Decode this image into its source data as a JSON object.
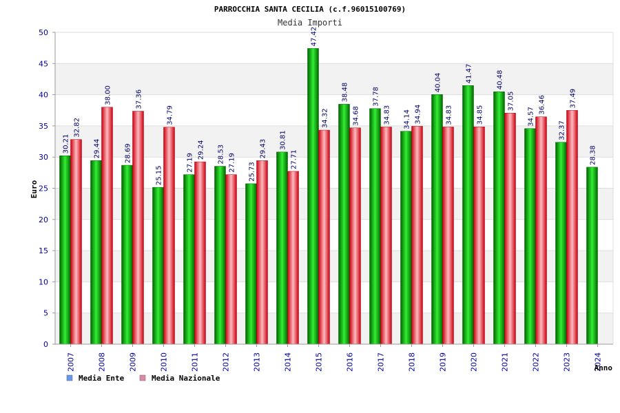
{
  "chart_data": {
    "type": "bar",
    "title": "PARROCCHIA SANTA CECILIA (c.f.96015100769)",
    "subtitle": "Media Importi",
    "ylabel": "Euro",
    "xlabel": "Anno",
    "ylim": [
      0,
      50
    ],
    "yticks": [
      0,
      5,
      10,
      15,
      20,
      25,
      30,
      35,
      40,
      45,
      50
    ],
    "grid": true,
    "legend_position": "bottom-left",
    "categories": [
      "2007",
      "2008",
      "2009",
      "2010",
      "2011",
      "2012",
      "2013",
      "2014",
      "2015",
      "2016",
      "2017",
      "2018",
      "2019",
      "2020",
      "2021",
      "2022",
      "2023",
      "2024"
    ],
    "series": [
      {
        "name": "Media Ente",
        "color": "#00aa00",
        "legend_color": "#6699ee",
        "values": [
          30.21,
          29.44,
          28.69,
          25.15,
          27.19,
          28.53,
          25.73,
          30.81,
          47.42,
          38.48,
          37.78,
          34.14,
          40.04,
          41.47,
          40.48,
          34.57,
          32.37,
          28.38
        ],
        "labels": [
          "30.21",
          "29.44",
          "28.69",
          "25.15",
          "27.19",
          "28.53",
          "25.73",
          "30.81",
          "47.42",
          "38.48",
          "37.78",
          "34.14",
          "40.04",
          "41.47",
          "40.48",
          "34.57",
          "32.37",
          "28.38"
        ]
      },
      {
        "name": "Media Nazionale",
        "color": "#ee2233",
        "legend_color": "#dd88aa",
        "values": [
          32.82,
          38.0,
          37.36,
          34.79,
          29.24,
          27.19,
          29.43,
          27.71,
          34.32,
          34.68,
          34.83,
          34.94,
          34.83,
          34.85,
          37.05,
          36.46,
          37.49,
          null
        ],
        "labels": [
          "32.82",
          "38.00",
          "37.36",
          "34.79",
          "29.24",
          "27.19",
          "29.43",
          "27.71",
          "34.32",
          "34.68",
          "34.83",
          "34.94",
          "34.83",
          "34.85",
          "37.05",
          "36.46",
          "37.49",
          ""
        ]
      }
    ]
  }
}
